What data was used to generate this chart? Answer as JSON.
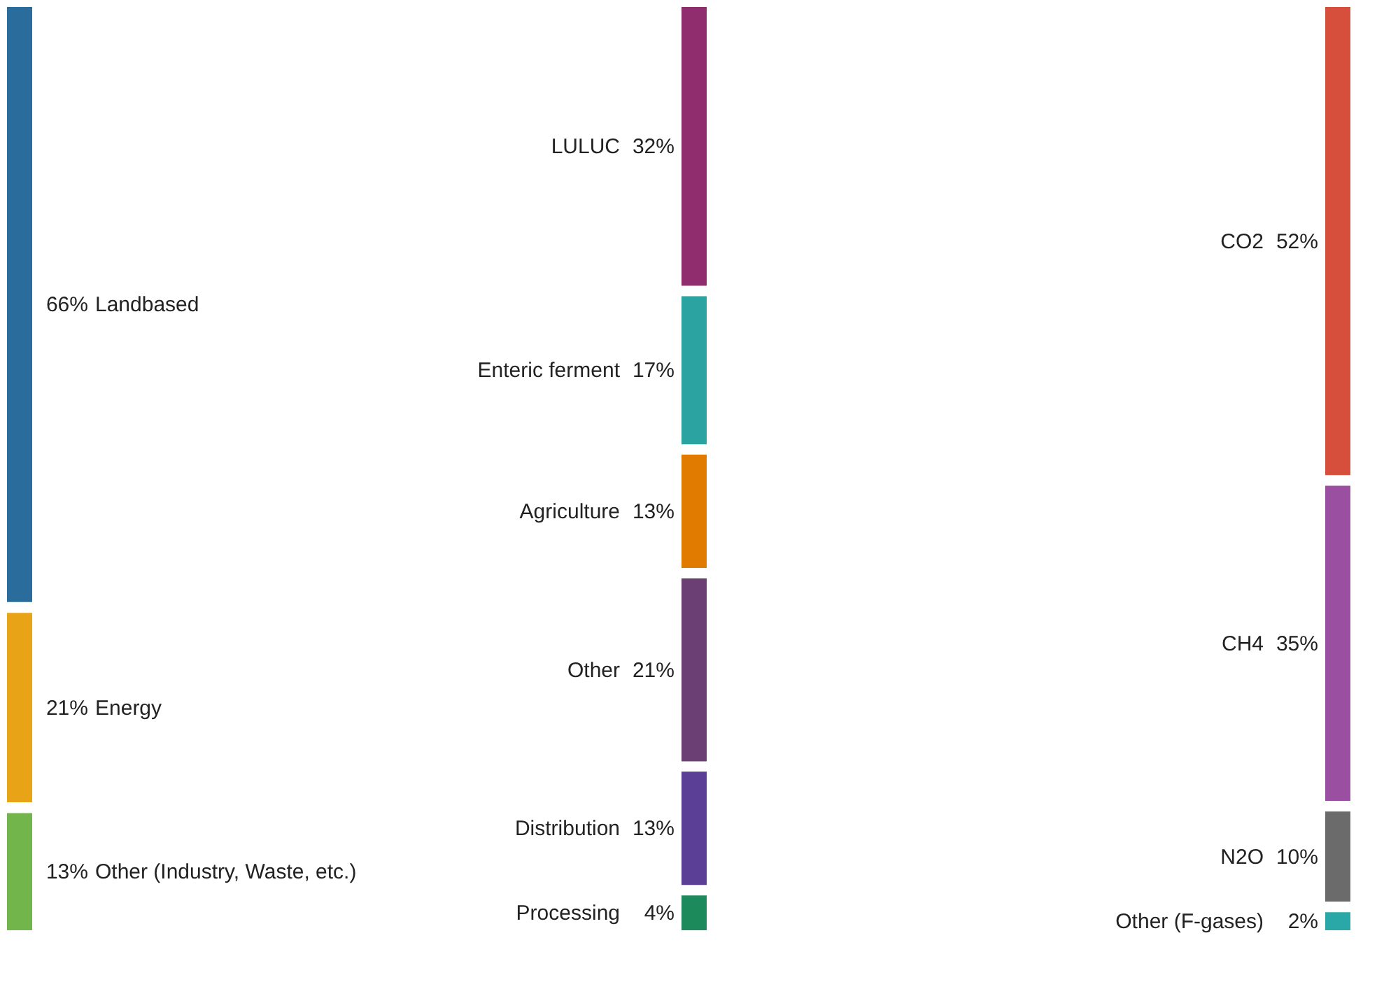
{
  "chart_data": [
    {
      "type": "other",
      "categories": [
        "Landbased",
        "Energy",
        "Other (Industry, Waste, etc.)"
      ],
      "values": [
        66,
        21,
        13
      ],
      "value_labels": [
        "66%",
        "21%",
        "13%"
      ],
      "colors": [
        "#2a6c9c",
        "#e8a317",
        "#72b54a"
      ]
    },
    {
      "type": "other",
      "categories": [
        "LULUC",
        "Enteric ferment",
        "Agriculture",
        "Other",
        "Distribution",
        "Processing"
      ],
      "values": [
        32,
        17,
        13,
        21,
        13,
        4
      ],
      "value_labels": [
        "32%",
        "17%",
        "13%",
        "21%",
        "13%",
        "4%"
      ],
      "colors": [
        "#8f2d6e",
        "#2ba3a0",
        "#e07b00",
        "#6b3f73",
        "#5b3f96",
        "#1d8a5c"
      ]
    },
    {
      "type": "other",
      "categories": [
        "CO2",
        "CH4",
        "N2O",
        "Other (F-gases)"
      ],
      "values": [
        52,
        35,
        10,
        2
      ],
      "value_labels": [
        "52%",
        "35%",
        "10%",
        "2%"
      ],
      "colors": [
        "#d64f3c",
        "#9b4fa0",
        "#6b6b6b",
        "#2aa8a8"
      ]
    }
  ]
}
